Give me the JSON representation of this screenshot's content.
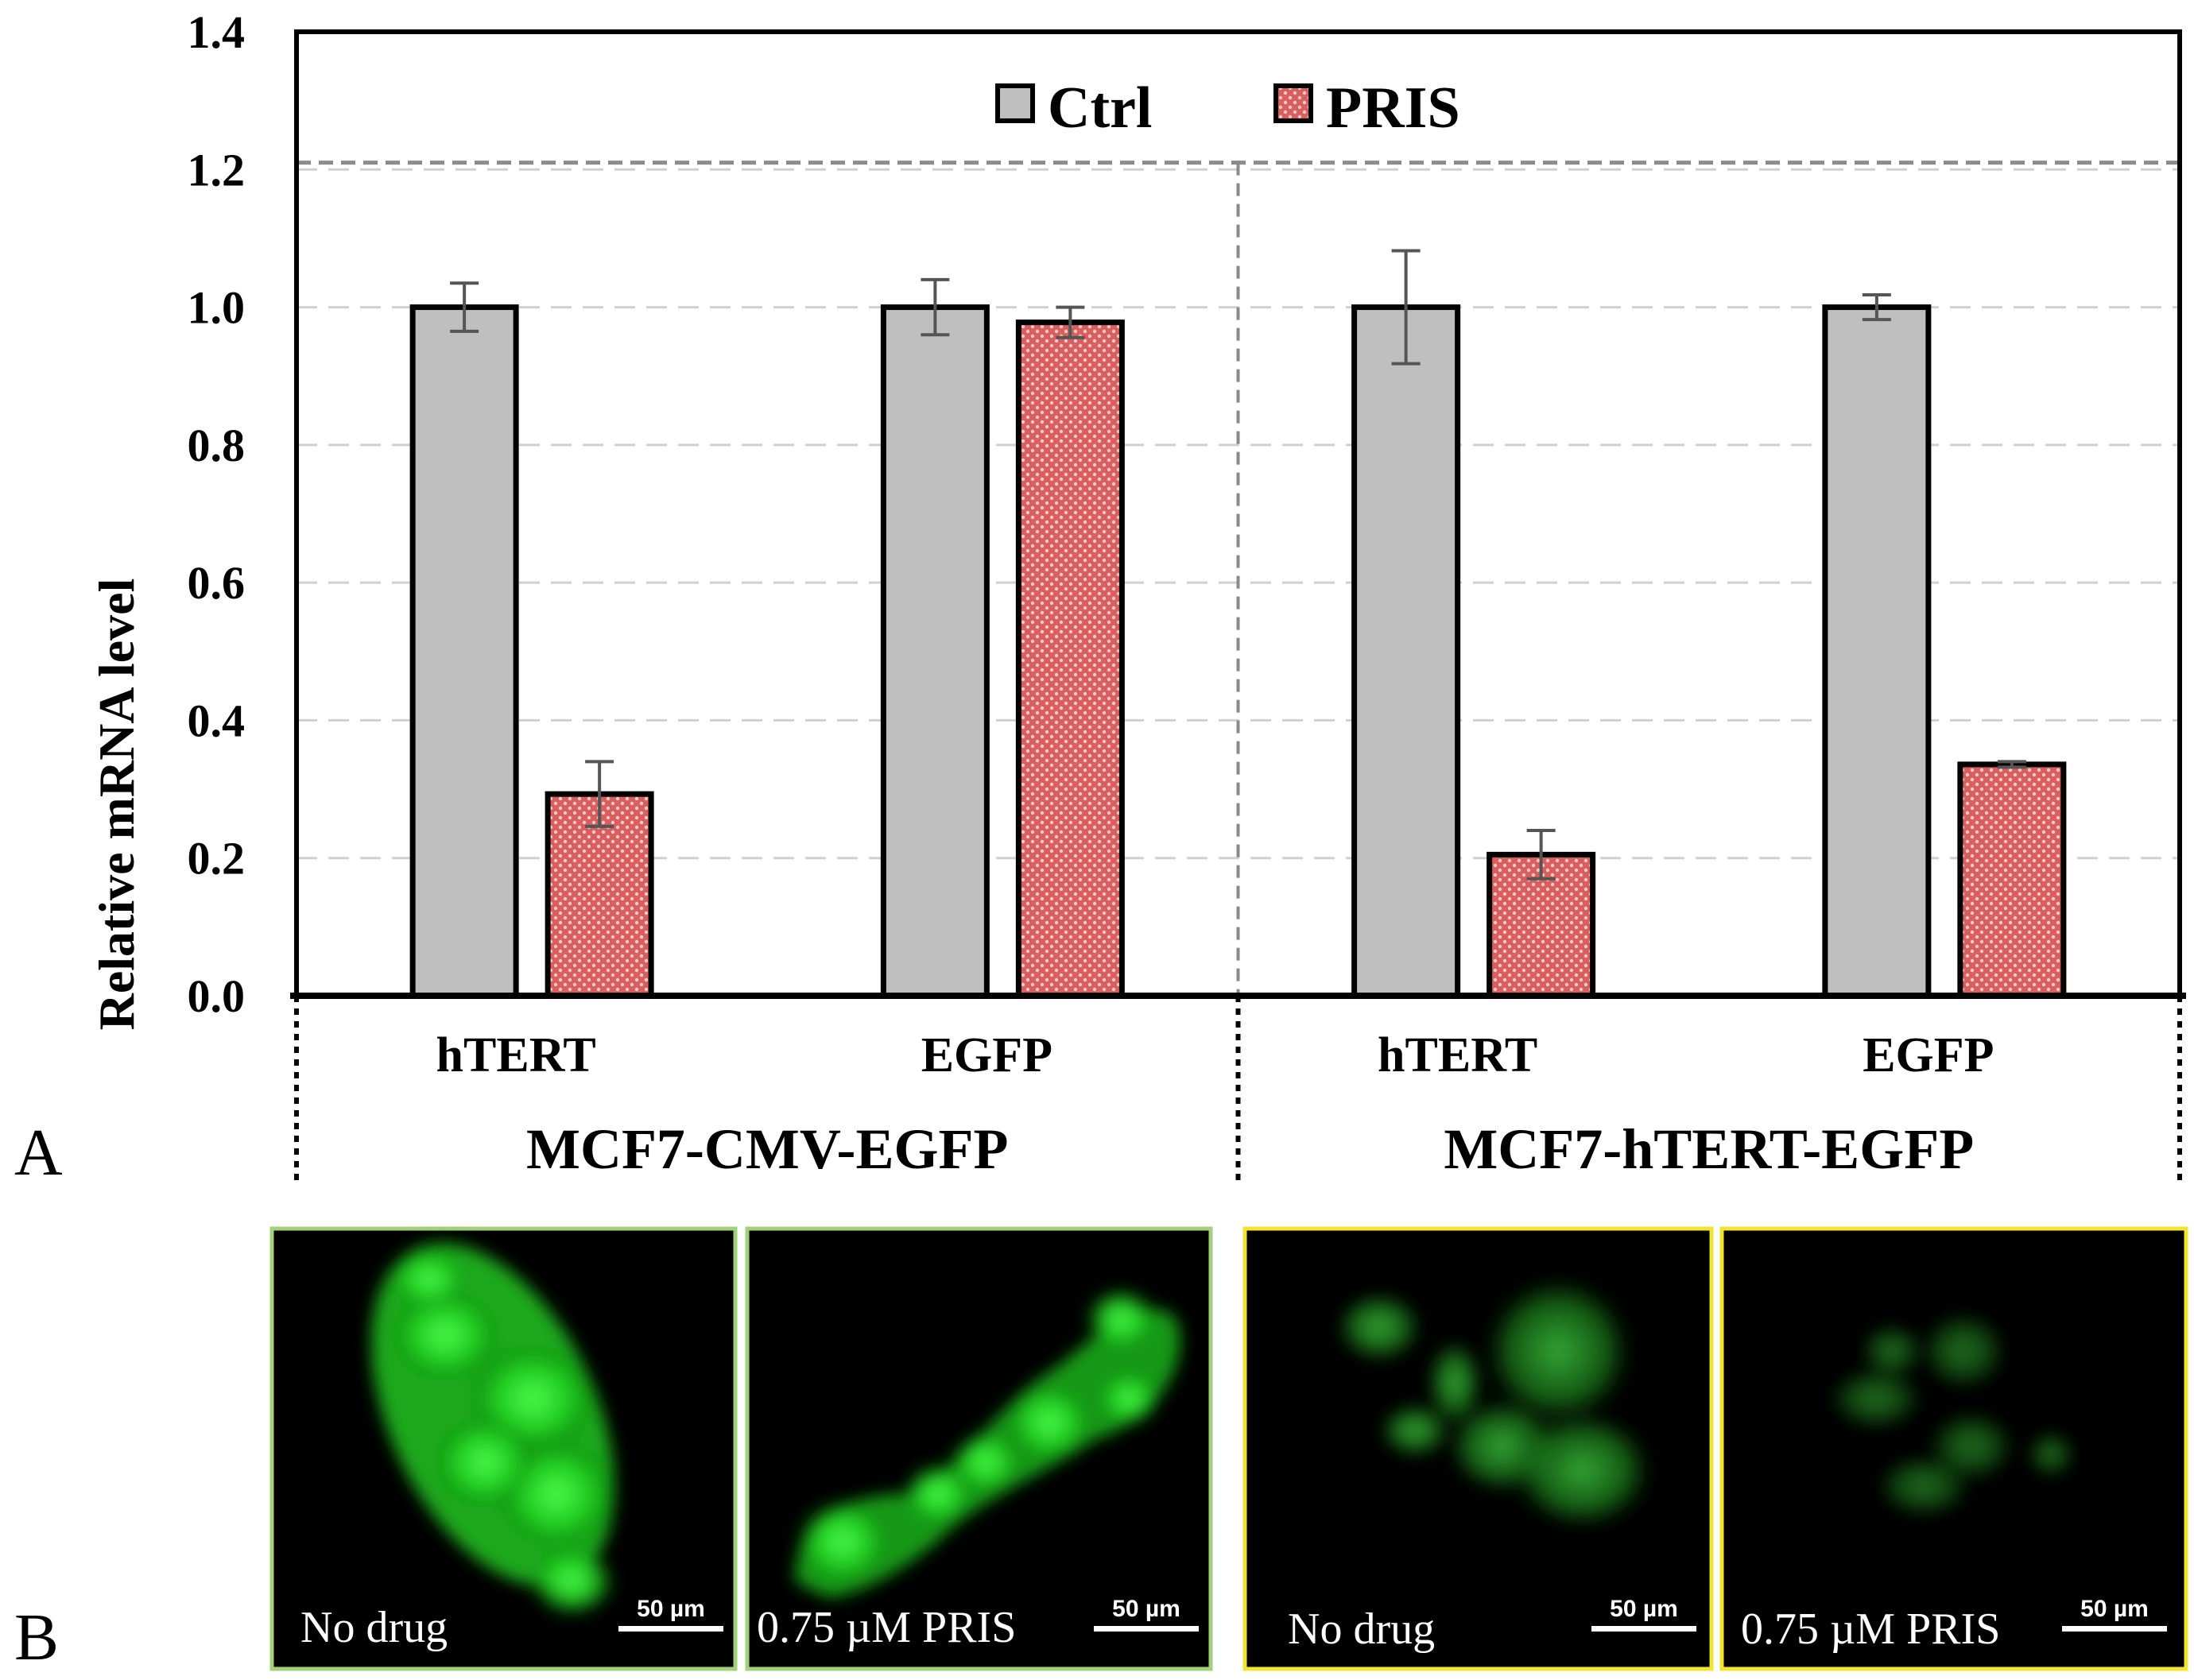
{
  "chart_data": {
    "type": "bar",
    "ylabel": "Relative mRNA level",
    "ylim": [
      0,
      1.4
    ],
    "yticks": [
      "0.0",
      "0.2",
      "0.4",
      "0.6",
      "0.8",
      "1.0",
      "1.2",
      "1.4"
    ],
    "grid": true,
    "legend_position": "top-center",
    "groups": [
      {
        "name": "MCF7-CMV-EGFP",
        "categories": [
          "hTERT",
          "EGFP"
        ]
      },
      {
        "name": "MCF7-hTERT-EGFP",
        "categories": [
          "hTERT",
          "EGFP"
        ]
      }
    ],
    "series": [
      {
        "name": "Ctrl",
        "color": "#bfbfbf",
        "values": [
          1.0,
          1.0,
          1.0,
          1.0
        ],
        "errors": [
          0.035,
          0.04,
          0.082,
          0.018
        ]
      },
      {
        "name": "PRIS",
        "color": "#e06666",
        "values": [
          0.293,
          0.978,
          0.205,
          0.336
        ],
        "errors": [
          0.047,
          0.022,
          0.035,
          0.004
        ]
      }
    ],
    "reference_line": 1.21
  },
  "panels": {
    "a_label": "A",
    "b_label": "B"
  },
  "images": [
    {
      "caption": "No drug",
      "scale": "50 µm",
      "frame_color": "#a4d07a"
    },
    {
      "caption": "0.75 µM PRIS",
      "scale": "50 µm",
      "frame_color": "#a4d07a"
    },
    {
      "caption": "No drug",
      "scale": "50 µm",
      "frame_color": "#f2e530"
    },
    {
      "caption": "0.75 µM PRIS",
      "scale": "50 µm",
      "frame_color": "#f2e530"
    }
  ]
}
